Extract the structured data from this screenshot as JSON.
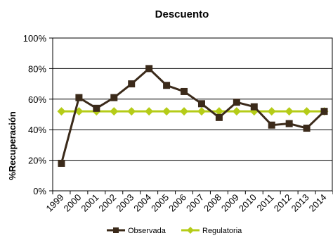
{
  "chart_data": {
    "type": "line",
    "title": "Descuento",
    "xlabel": "",
    "ylabel": "%Recuperación",
    "categories": [
      "1999",
      "2000",
      "2001",
      "2002",
      "2003",
      "2004",
      "2005",
      "2006",
      "2007",
      "2008",
      "2009",
      "2010",
      "2011",
      "2012",
      "2013",
      "2014"
    ],
    "ylim": [
      0,
      100
    ],
    "yticks": [
      "0%",
      "20%",
      "40%",
      "60%",
      "80%",
      "100%"
    ],
    "grid": true,
    "legend_position": "bottom",
    "series": [
      {
        "name": "Observada",
        "color": "#3b2a1a",
        "marker": "square",
        "values": [
          18,
          61,
          54,
          61,
          70,
          80,
          69,
          65,
          57,
          48,
          58,
          55,
          43,
          44,
          41,
          52
        ]
      },
      {
        "name": "Regulatoria",
        "color": "#b5cc18",
        "marker": "diamond",
        "values": [
          52,
          52,
          52,
          52,
          52,
          52,
          52,
          52,
          52,
          52,
          52,
          52,
          52,
          52,
          52,
          52
        ]
      }
    ]
  }
}
